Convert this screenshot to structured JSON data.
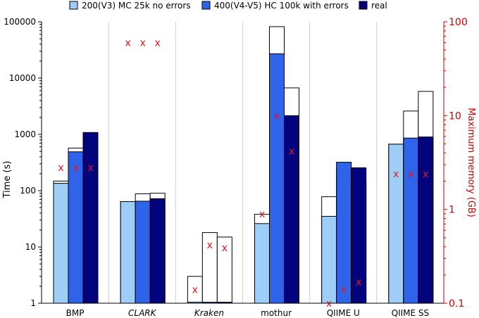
{
  "chart_data": {
    "type": "bar",
    "categories": [
      {
        "label": "BMP",
        "italic": false
      },
      {
        "label": "CLARK",
        "italic": true
      },
      {
        "label": "Kraken",
        "italic": true
      },
      {
        "label": "mothur",
        "italic": false
      },
      {
        "label": "QIIME U",
        "italic": false
      },
      {
        "label": "QIIME SS",
        "italic": false
      }
    ],
    "series": [
      {
        "name": "200(V3) MC 25k no errors",
        "color": "#9ecef7",
        "values": [
          135,
          64,
          1,
          26,
          35,
          670
        ],
        "outline_values": [
          148,
          64,
          3,
          38,
          78,
          670
        ]
      },
      {
        "name": "400(V4-V5) HC 100k with errors",
        "color": "#2e63ea",
        "values": [
          490,
          65,
          1,
          27000,
          320,
          860
        ],
        "outline_values": [
          570,
          88,
          18,
          82000,
          240,
          2600
        ]
      },
      {
        "name": "real",
        "color": "#03037e",
        "values": [
          1080,
          72,
          1,
          2150,
          255,
          900
        ],
        "outline_values": [
          1040,
          90,
          15,
          6700,
          145,
          5800
        ]
      }
    ],
    "memory_gb": [
      [
        2.8,
        2.8,
        2.8
      ],
      [
        60,
        60,
        60
      ],
      [
        0.14,
        0.42,
        0.39
      ],
      [
        0.9,
        10,
        4.2
      ],
      [
        0.1,
        0.14,
        0.17
      ],
      [
        2.4,
        2.4,
        2.4
      ]
    ],
    "ylabel": "Time (s)",
    "ylabel_right": "Maximum memory (GB)",
    "ylim": [
      1,
      100000
    ],
    "ylim_right": [
      0.1,
      100
    ],
    "yscale": "log",
    "yticks": [
      "1",
      "10",
      "100",
      "1000",
      "10000",
      "100000"
    ],
    "yticks_right": [
      "0.1",
      "1",
      "10",
      "100"
    ],
    "memory_marker": "x",
    "memory_color": "#e8141b",
    "right_axis_color": "#cc0000",
    "legend_position": "top",
    "grid": "vertical-separators"
  }
}
